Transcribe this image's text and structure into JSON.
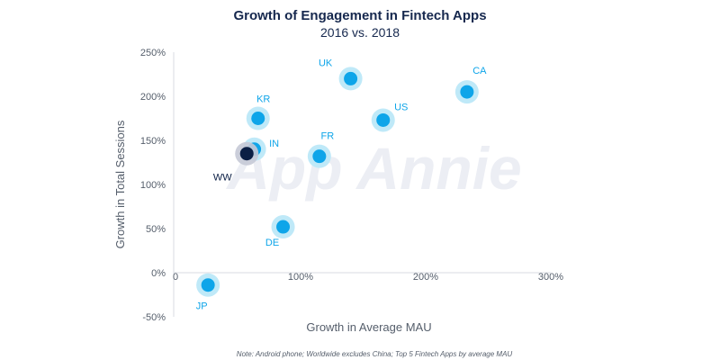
{
  "chart_data": {
    "type": "scatter",
    "title": "Growth of Engagement in Fintech Apps",
    "subtitle": "2016 vs. 2018",
    "xlabel": "Growth in Average MAU",
    "ylabel": "Growth in Total Sessions",
    "xlim": [
      0,
      300
    ],
    "ylim": [
      -50,
      250
    ],
    "x_ticks": [
      "0",
      "100%",
      "200%",
      "300%"
    ],
    "y_ticks": [
      "250%",
      "200%",
      "150%",
      "100%",
      "50%",
      "0%",
      "-50%"
    ],
    "grid": false,
    "points": [
      {
        "label": "UK",
        "x": 140,
        "y": 220,
        "color": "#0ea5e9"
      },
      {
        "label": "CA",
        "x": 233,
        "y": 205,
        "color": "#0ea5e9"
      },
      {
        "label": "KR",
        "x": 66,
        "y": 175,
        "color": "#0ea5e9"
      },
      {
        "label": "US",
        "x": 166,
        "y": 173,
        "color": "#0ea5e9"
      },
      {
        "label": "IN",
        "x": 63,
        "y": 140,
        "color": "#0ea5e9"
      },
      {
        "label": "FR",
        "x": 115,
        "y": 132,
        "color": "#0ea5e9"
      },
      {
        "label": "WW",
        "x": 57,
        "y": 135,
        "color": "#0b1f45"
      },
      {
        "label": "DE",
        "x": 86,
        "y": 52,
        "color": "#0ea5e9"
      },
      {
        "label": "JP",
        "x": 26,
        "y": -14,
        "color": "#0ea5e9"
      }
    ]
  },
  "watermark": "App Annie",
  "note": "Note: Android phone; Worldwide excludes China; Top 5 Fintech Apps by average MAU",
  "colors": {
    "accent": "#0ea5e9",
    "halo": "#bfe9f8",
    "worldwide": "#0b1f45",
    "worldwide_halo": "#c5c9d6",
    "title": "#16284e",
    "text": "#555e6b"
  }
}
